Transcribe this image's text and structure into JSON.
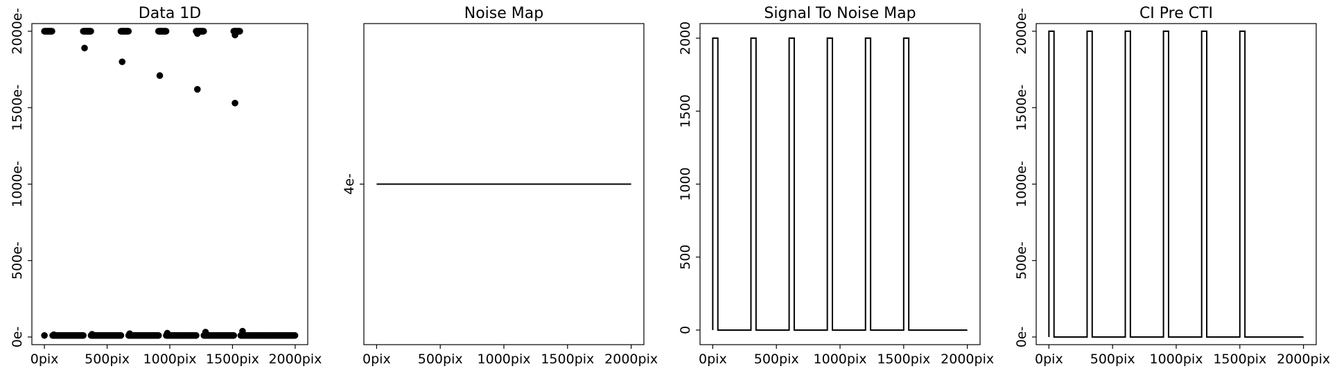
{
  "chart_data": [
    {
      "type": "scatter",
      "title": "Data 1D",
      "xlim": [
        -100,
        2100
      ],
      "ylim": [
        -50,
        2050
      ],
      "xticks": [
        0,
        500,
        1000,
        1500,
        2000
      ],
      "xtick_labels": [
        "0pix",
        "500pix",
        "1000pix",
        "1500pix",
        "2000pix"
      ],
      "yticks": [
        0,
        500,
        1000,
        1500,
        2000
      ],
      "ytick_labels": [
        "0e-",
        "500e-",
        "1000e-",
        "1500e-",
        "2000e-"
      ],
      "high_x_ranges": [
        [
          0,
          60
        ],
        [
          310,
          370
        ],
        [
          610,
          670
        ],
        [
          910,
          970
        ],
        [
          1210,
          1270
        ],
        [
          1510,
          1560
        ]
      ],
      "high_level": 2000,
      "low_level": 10,
      "outlier_points": [
        {
          "x": 320,
          "y": 1890
        },
        {
          "x": 620,
          "y": 1800
        },
        {
          "x": 920,
          "y": 1710
        },
        {
          "x": 1220,
          "y": 1620
        },
        {
          "x": 1520,
          "y": 1530
        },
        {
          "x": 1520,
          "y": 1975
        },
        {
          "x": 1220,
          "y": 1985
        }
      ],
      "bump_points": [
        {
          "x": 75,
          "y": 15
        },
        {
          "x": 380,
          "y": 18
        },
        {
          "x": 680,
          "y": 22
        },
        {
          "x": 980,
          "y": 25
        },
        {
          "x": 1285,
          "y": 32
        },
        {
          "x": 1580,
          "y": 38
        }
      ]
    },
    {
      "type": "line",
      "title": "Noise Map",
      "xlim": [
        -100,
        2100
      ],
      "ylim": [
        3,
        5
      ],
      "xticks": [
        0,
        500,
        1000,
        1500,
        2000
      ],
      "xtick_labels": [
        "0pix",
        "500pix",
        "1000pix",
        "1500pix",
        "2000pix"
      ],
      "yticks": [
        4
      ],
      "ytick_labels": [
        "4e-"
      ],
      "x": [
        0,
        2000
      ],
      "values": [
        4,
        4
      ]
    },
    {
      "type": "line",
      "title": "Signal To Noise Map",
      "xlim": [
        -100,
        2100
      ],
      "ylim": [
        -100,
        2100
      ],
      "xticks": [
        0,
        500,
        1000,
        1500,
        2000
      ],
      "xtick_labels": [
        "0pix",
        "500pix",
        "1000pix",
        "1500pix",
        "2000pix"
      ],
      "yticks": [
        0,
        500,
        1000,
        1500,
        2000
      ],
      "ytick_labels": [
        "0",
        "500",
        "1000",
        "1500",
        "2000"
      ],
      "pulse_starts": [
        0,
        300,
        600,
        900,
        1200,
        1500
      ],
      "pulse_width": 40,
      "high_level": 2000,
      "low_level": 0,
      "x_end": 2000
    },
    {
      "type": "line",
      "title": "CI Pre CTI",
      "xlim": [
        -100,
        2100
      ],
      "ylim": [
        -50,
        2050
      ],
      "xticks": [
        0,
        500,
        1000,
        1500,
        2000
      ],
      "xtick_labels": [
        "0pix",
        "500pix",
        "1000pix",
        "1500pix",
        "2000pix"
      ],
      "yticks": [
        0,
        500,
        1000,
        1500,
        2000
      ],
      "ytick_labels": [
        "0e-",
        "500e-",
        "1000e-",
        "1500e-",
        "2000e-"
      ],
      "pulse_starts": [
        0,
        300,
        600,
        900,
        1200,
        1500
      ],
      "pulse_width": 40,
      "high_level": 2000,
      "low_level": 0,
      "x_end": 2000
    }
  ]
}
